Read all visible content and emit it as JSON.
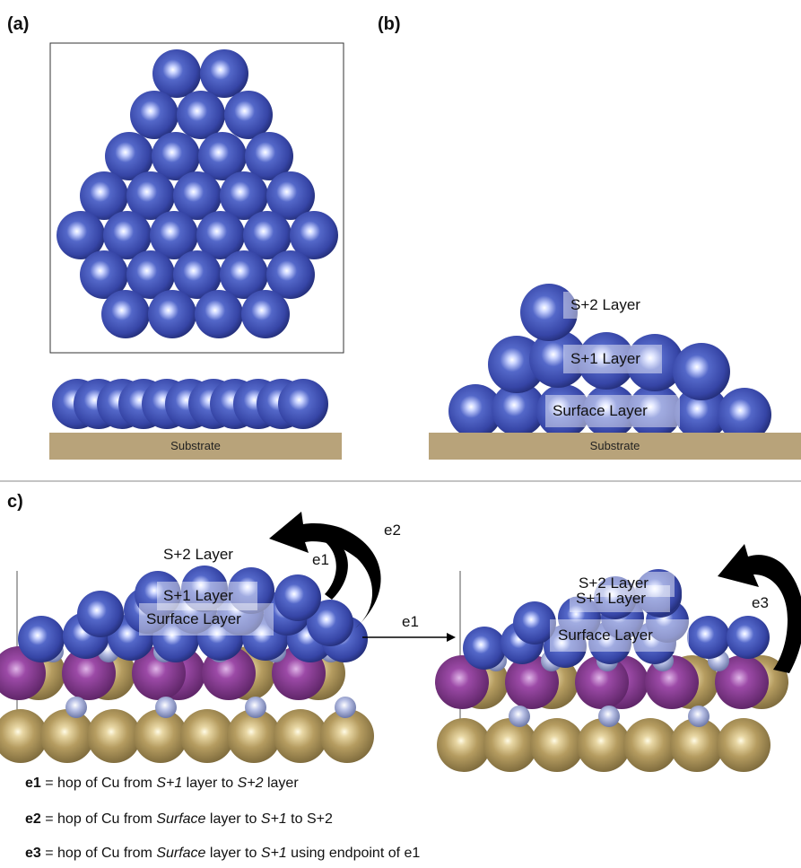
{
  "panels": {
    "a": {
      "label": "(a)",
      "substrate": "Substrate"
    },
    "b": {
      "label": "(b)",
      "substrate": "Substrate",
      "layers": {
        "s2": "S+2 Layer",
        "s1": "S+1 Layer",
        "surface": "Surface Layer"
      }
    },
    "c": {
      "label": "c)",
      "left_layers": {
        "s2": "S+2 Layer",
        "s1": "S+1 Layer",
        "surface": "Surface Layer"
      },
      "right_layers": {
        "s2": "S+2 Layer",
        "s1": "S+1 Layer",
        "surface": "Surface Layer"
      },
      "arrows": {
        "e1_curve": "e1",
        "e2_curve": "e2",
        "e1_transition": "e1",
        "e3_curve": "e3"
      }
    }
  },
  "legend": [
    {
      "key": "e1",
      "sep": " = hop of Cu from ",
      "a": "S+1",
      "mid": " layer to ",
      "b": "S+2",
      "tail": " layer"
    },
    {
      "key": "e2",
      "sep": " = hop of Cu from ",
      "a": "Surface",
      "mid": " layer to ",
      "b": "S+1",
      "tail": " to S+2"
    },
    {
      "key": "e3",
      "sep": " = hop of Cu from ",
      "a": "Surface",
      "mid": " layer to ",
      "b": "S+1",
      "tail": " using endpoint of e1"
    }
  ],
  "colors": {
    "cu_atom": "#3c4fb0",
    "substrate_bar": "#b8a37a",
    "gold_atom": "#b8a066",
    "purple_atom": "#8a3c94",
    "small_atom": "#a9b3d9"
  }
}
